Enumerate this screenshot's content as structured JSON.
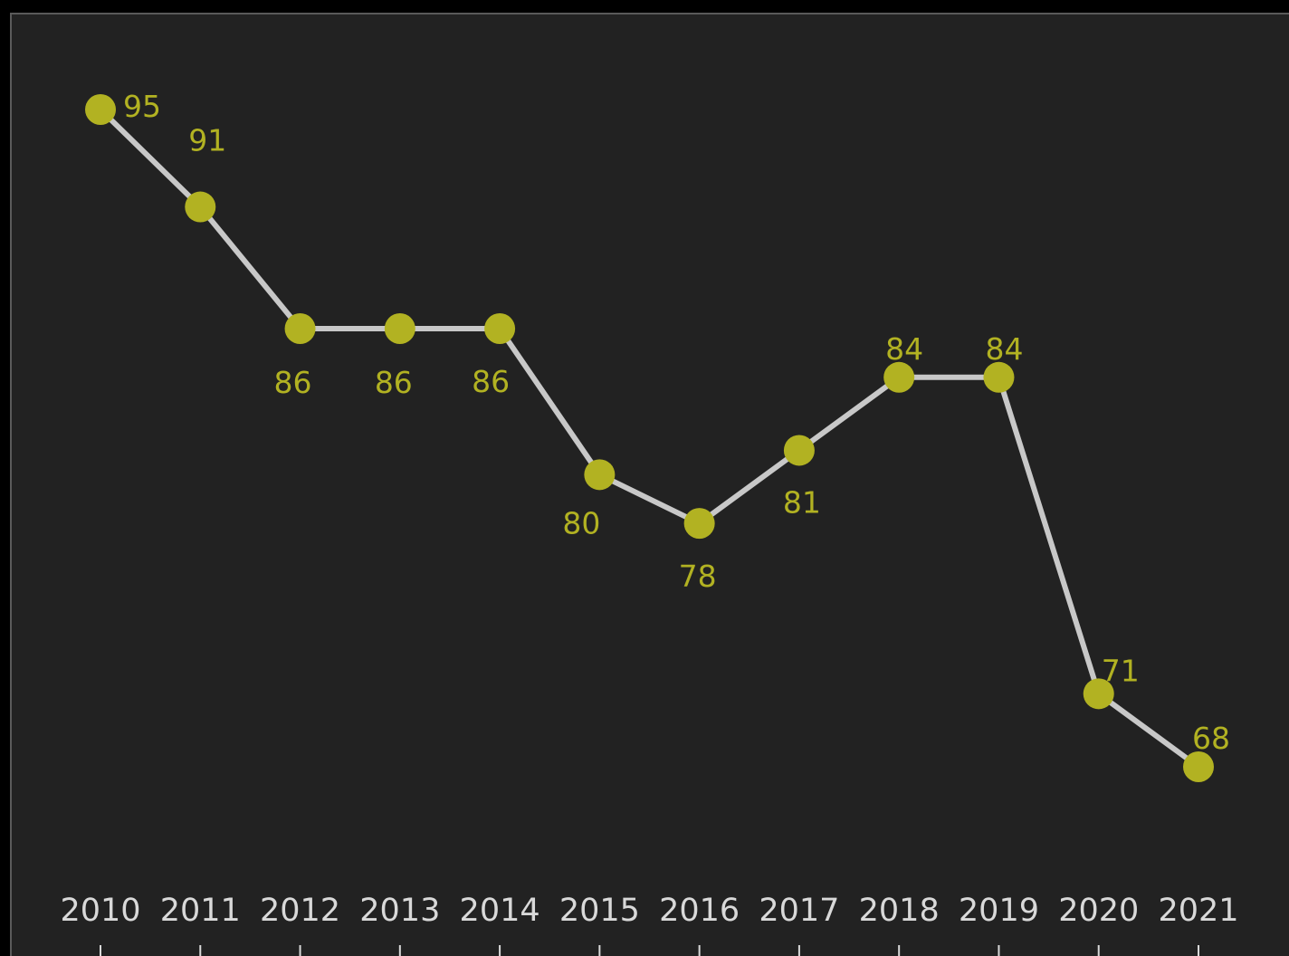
{
  "chart_data": {
    "type": "line",
    "x": [
      "2010",
      "2011",
      "2012",
      "2013",
      "2014",
      "2015",
      "2016",
      "2017",
      "2018",
      "2019",
      "2020",
      "2021"
    ],
    "series": [
      {
        "values": [
          95,
          91,
          86,
          86,
          86,
          80,
          78,
          81,
          84,
          84,
          71,
          68
        ]
      }
    ],
    "ylim": [
      60,
      99
    ],
    "grid": false,
    "colors": {
      "background": "#222222",
      "line": "#c8c8c8",
      "marker": "#b2b222",
      "label": "#b2b222",
      "tick_text": "#d9d9d9"
    }
  }
}
